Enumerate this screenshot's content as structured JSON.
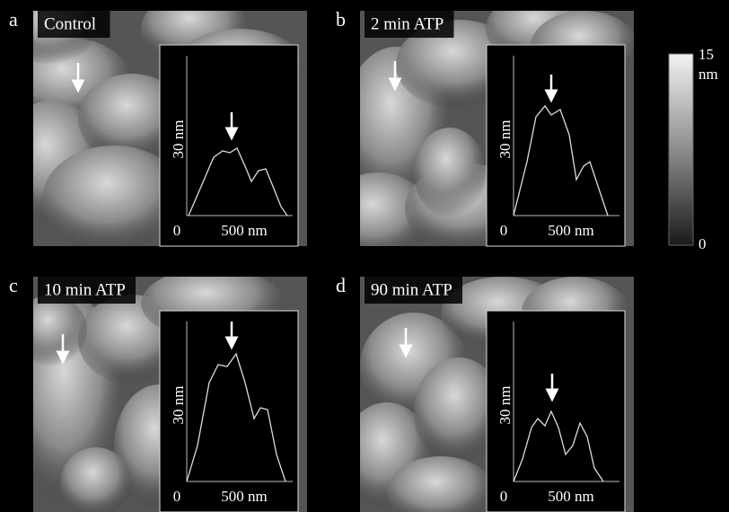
{
  "panels": [
    {
      "letter": "a",
      "label": "Control",
      "profile": {
        "y_label": "30 nm",
        "x_origin": "0",
        "x_label": "500 nm"
      }
    },
    {
      "letter": "b",
      "label": "2 min ATP",
      "profile": {
        "y_label": "30 nm",
        "x_origin": "0",
        "x_label": "500 nm"
      }
    },
    {
      "letter": "c",
      "label": "10 min ATP",
      "profile": {
        "y_label": "30 nm",
        "x_origin": "0",
        "x_label": "500 nm"
      }
    },
    {
      "letter": "d",
      "label": "90 min ATP",
      "profile": {
        "y_label": "30 nm",
        "x_origin": "0",
        "x_label": "500 nm"
      }
    }
  ],
  "colorbar": {
    "max": "15",
    "unit": "nm",
    "min": "0"
  }
}
